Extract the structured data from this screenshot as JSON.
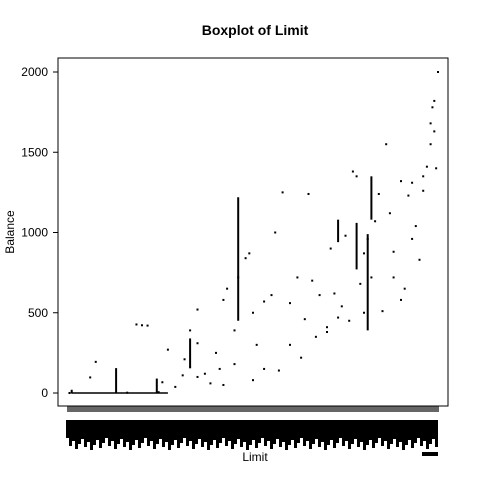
{
  "chart_data": {
    "type": "boxplot",
    "title": "Boxplot of Limit",
    "xlabel": "Limit",
    "ylabel": "Balance",
    "ylim": [
      -60,
      2070
    ],
    "y_ticks": [
      0,
      500,
      1000,
      1500,
      2000
    ],
    "grid": false,
    "legend": "none",
    "x_tick_labels": "unreadable (overlapping rotated limit values)",
    "notable_boxes": [
      {
        "balance_low": 0,
        "balance_high": 155
      },
      {
        "balance_low": 0,
        "balance_high": 90
      },
      {
        "balance_low": 160,
        "balance_high": 340
      },
      {
        "balance_low": 450,
        "balance_high": 1220
      },
      {
        "balance_low": 940,
        "balance_high": 1080
      },
      {
        "balance_low": 770,
        "balance_high": 1060
      },
      {
        "balance_low": 390,
        "balance_high": 990
      },
      {
        "balance_low": 1080,
        "balance_high": 1350
      }
    ],
    "points": [
      [
        0.004,
        0
      ],
      [
        0.01,
        14
      ],
      [
        0.01,
        3
      ],
      [
        0.06,
        97
      ],
      [
        0.075,
        194
      ],
      [
        0.16,
        2
      ],
      [
        0.185,
        427
      ],
      [
        0.2,
        422
      ],
      [
        0.215,
        420
      ],
      [
        0.245,
        5
      ],
      [
        0.255,
        67
      ],
      [
        0.27,
        270
      ],
      [
        0.29,
        38
      ],
      [
        0.31,
        110
      ],
      [
        0.315,
        210
      ],
      [
        0.33,
        160
      ],
      [
        0.33,
        390
      ],
      [
        0.35,
        310
      ],
      [
        0.35,
        520
      ],
      [
        0.37,
        120
      ],
      [
        0.385,
        60
      ],
      [
        0.4,
        250
      ],
      [
        0.41,
        150
      ],
      [
        0.42,
        580
      ],
      [
        0.43,
        650
      ],
      [
        0.45,
        390
      ],
      [
        0.46,
        720
      ],
      [
        0.48,
        840
      ],
      [
        0.49,
        870
      ],
      [
        0.5,
        500
      ],
      [
        0.51,
        300
      ],
      [
        0.53,
        570
      ],
      [
        0.55,
        610
      ],
      [
        0.56,
        1000
      ],
      [
        0.57,
        140
      ],
      [
        0.58,
        1250
      ],
      [
        0.6,
        560
      ],
      [
        0.62,
        720
      ],
      [
        0.64,
        460
      ],
      [
        0.65,
        1240
      ],
      [
        0.66,
        700
      ],
      [
        0.68,
        610
      ],
      [
        0.7,
        380
      ],
      [
        0.71,
        900
      ],
      [
        0.72,
        620
      ],
      [
        0.74,
        540
      ],
      [
        0.75,
        980
      ],
      [
        0.77,
        1380
      ],
      [
        0.78,
        1350
      ],
      [
        0.79,
        680
      ],
      [
        0.8,
        870
      ],
      [
        0.81,
        960
      ],
      [
        0.82,
        720
      ],
      [
        0.83,
        1070
      ],
      [
        0.84,
        1240
      ],
      [
        0.86,
        1550
      ],
      [
        0.87,
        1120
      ],
      [
        0.88,
        880
      ],
      [
        0.9,
        580
      ],
      [
        0.91,
        650
      ],
      [
        0.92,
        1230
      ],
      [
        0.93,
        1310
      ],
      [
        0.94,
        1040
      ],
      [
        0.95,
        830
      ],
      [
        0.96,
        1260
      ],
      [
        0.97,
        1410
      ],
      [
        0.98,
        1680
      ],
      [
        0.985,
        1780
      ],
      [
        0.99,
        1820
      ],
      [
        0.995,
        1400
      ],
      [
        1.0,
        2000
      ],
      [
        0.35,
        100
      ],
      [
        0.42,
        50
      ],
      [
        0.45,
        180
      ],
      [
        0.5,
        80
      ],
      [
        0.53,
        150
      ],
      [
        0.6,
        300
      ],
      [
        0.63,
        220
      ],
      [
        0.67,
        350
      ],
      [
        0.7,
        410
      ],
      [
        0.73,
        470
      ],
      [
        0.76,
        450
      ],
      [
        0.8,
        500
      ],
      [
        0.85,
        510
      ],
      [
        0.88,
        720
      ],
      [
        0.9,
        1320
      ],
      [
        0.93,
        960
      ],
      [
        0.96,
        1350
      ],
      [
        0.98,
        1550
      ],
      [
        0.99,
        1630
      ]
    ]
  }
}
